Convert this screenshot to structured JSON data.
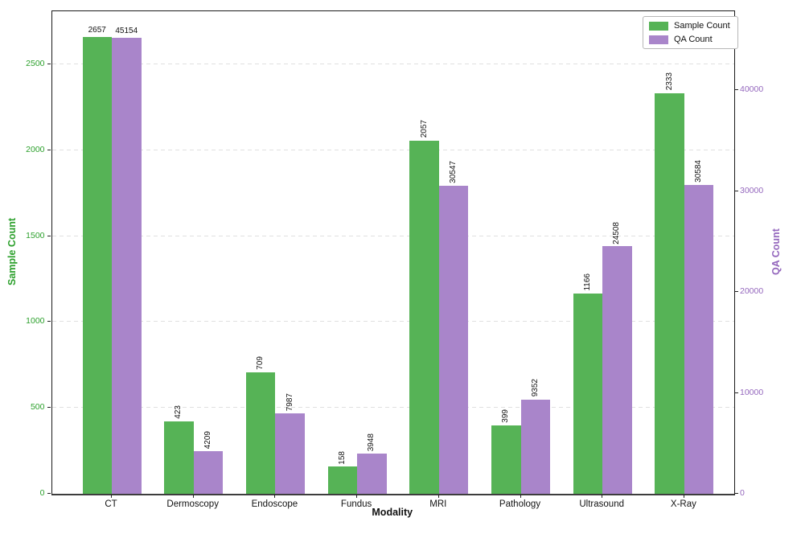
{
  "chart_data": {
    "type": "bar",
    "title": "",
    "xlabel": "Modality",
    "ylabel_left": "Sample Count",
    "ylabel_right": "QA Count",
    "categories": [
      "CT",
      "Dermoscopy",
      "Endoscope",
      "Fundus",
      "MRI",
      "Pathology",
      "Ultrasound",
      "X-Ray"
    ],
    "series": [
      {
        "name": "Sample Count",
        "axis": "left",
        "color": "#56b356",
        "values": [
          2657,
          423,
          709,
          158,
          2057,
          399,
          1166,
          2333
        ]
      },
      {
        "name": "QA Count",
        "axis": "right",
        "color": "#a985ca",
        "values": [
          45154,
          4209,
          7987,
          3948,
          30547,
          9352,
          24508,
          30584
        ]
      }
    ],
    "left_axis": {
      "ticks": [
        0,
        500,
        1000,
        1500,
        2000,
        2500
      ],
      "range": [
        0,
        2809
      ],
      "color": "#2ca02c"
    },
    "right_axis": {
      "ticks": [
        0,
        10000,
        20000,
        30000,
        40000
      ],
      "range": [
        0,
        47809
      ],
      "color": "#9467bd"
    },
    "grid": "horizontal-dashed",
    "gridline_ticks_axis": "left",
    "legend_position": "top-right",
    "value_labels_rotated_per_category": [
      false,
      true,
      true,
      true,
      true,
      true,
      true,
      true
    ]
  },
  "legend": {
    "items": [
      {
        "label": "Sample Count",
        "color": "#56b356"
      },
      {
        "label": "QA Count",
        "color": "#a985ca"
      }
    ]
  }
}
